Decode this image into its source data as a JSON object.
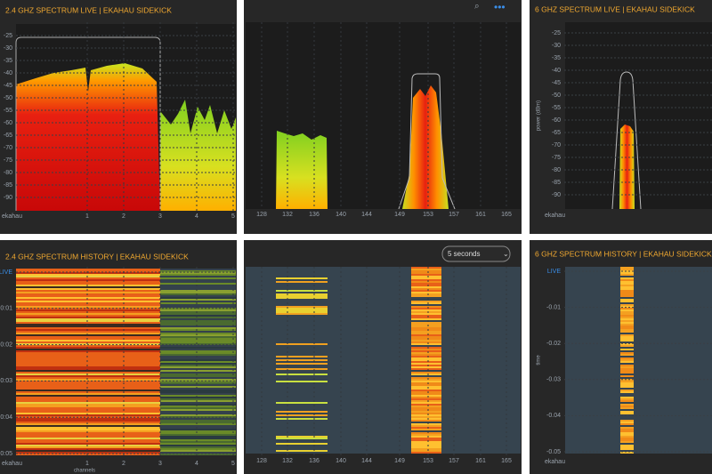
{
  "panels": [
    {
      "title": "2.4 GHZ SPECTRUM LIVE | EKAHAU SIDEKICK",
      "y_ticks": [
        -25,
        -30,
        -35,
        -40,
        -45,
        -50,
        -55,
        -60,
        -65,
        -70,
        -75,
        -80,
        -85,
        -90
      ],
      "x_ticks": [
        1,
        2,
        3,
        4,
        5
      ],
      "x_label": "ekahau"
    },
    {
      "x_ticks": [
        128,
        132,
        136,
        140,
        144,
        149,
        153,
        157,
        161,
        165
      ]
    },
    {
      "title": "6 GHZ SPECTRUM LIVE | EKAHAU SIDEKICK",
      "y_ticks": [
        -25,
        -30,
        -35,
        -40,
        -45,
        -50,
        -55,
        -60,
        -65,
        -70,
        -75,
        -80,
        -85,
        -90
      ],
      "y_label": "power (dBm)",
      "x_label": "ekahau"
    },
    {
      "title": "2.4 GHZ SPECTRUM HISTORY | EKAHAU SIDEKICK",
      "y_ticks": [
        "LIVE",
        "0:01",
        "0:02",
        "0:03",
        "0:04",
        "0:05"
      ],
      "x_ticks": [
        1,
        2,
        3,
        4,
        5
      ],
      "x_label": "ekahau",
      "x_axis_title": "channels"
    },
    {
      "dropdown": "5 seconds",
      "x_ticks": [
        128,
        132,
        136,
        140,
        144,
        149,
        153,
        157,
        161,
        165
      ]
    },
    {
      "title": "6 GHZ SPECTRUM HISTORY | EKAHAU SIDEKICK",
      "y_ticks": [
        "LIVE",
        "-0.01",
        "-0.02",
        "-0.03",
        "-0.04",
        "-0.05"
      ],
      "y_label": "time",
      "x_label": "ekahau"
    }
  ]
}
